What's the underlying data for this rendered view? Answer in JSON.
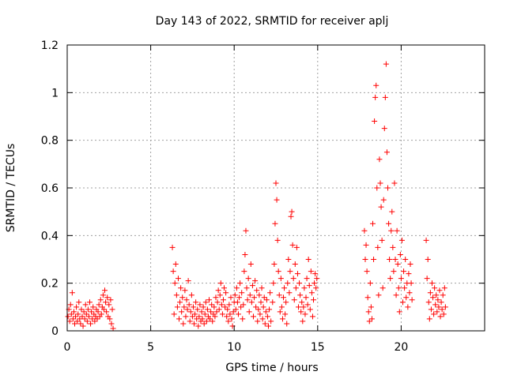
{
  "chart_data": {
    "type": "scatter",
    "title": "Day 143 of 2022, SRMTID for receiver aplj",
    "xlabel": "GPS time / hours",
    "ylabel": "SRMTID / TECUs",
    "xlim": [
      0,
      25
    ],
    "ylim": [
      0,
      1.2
    ],
    "xticks": [
      0,
      5,
      10,
      15,
      20
    ],
    "xtick_labels": [
      "0",
      "5",
      "10",
      "15",
      "20"
    ],
    "yticks": [
      0,
      0.2,
      0.4,
      0.6,
      0.8,
      1.0,
      1.2
    ],
    "ytick_labels": [
      "0",
      "0.2",
      "0.4",
      "0.6",
      "0.8",
      "1",
      "1.2"
    ],
    "grid": true,
    "marker": "+",
    "color": "#ff0000",
    "series": [
      {
        "name": "SRMTID",
        "points": [
          [
            0.05,
            0.06
          ],
          [
            0.1,
            0.09
          ],
          [
            0.15,
            0.04
          ],
          [
            0.2,
            0.11
          ],
          [
            0.25,
            0.07
          ],
          [
            0.3,
            0.16
          ],
          [
            0.35,
            0.05
          ],
          [
            0.4,
            0.08
          ],
          [
            0.45,
            0.03
          ],
          [
            0.5,
            0.06
          ],
          [
            0.55,
            0.1
          ],
          [
            0.6,
            0.04
          ],
          [
            0.65,
            0.07
          ],
          [
            0.7,
            0.12
          ],
          [
            0.75,
            0.05
          ],
          [
            0.8,
            0.03
          ],
          [
            0.85,
            0.09
          ],
          [
            0.9,
            0.06
          ],
          [
            0.95,
            0.02
          ],
          [
            1.0,
            0.08
          ],
          [
            1.05,
            0.05
          ],
          [
            1.1,
            0.11
          ],
          [
            1.15,
            0.07
          ],
          [
            1.2,
            0.04
          ],
          [
            1.25,
            0.09
          ],
          [
            1.3,
            0.06
          ],
          [
            1.35,
            0.12
          ],
          [
            1.4,
            0.03
          ],
          [
            1.45,
            0.08
          ],
          [
            1.5,
            0.05
          ],
          [
            1.55,
            0.1
          ],
          [
            1.6,
            0.07
          ],
          [
            1.65,
            0.04
          ],
          [
            1.7,
            0.06
          ],
          [
            1.75,
            0.09
          ],
          [
            1.8,
            0.05
          ],
          [
            1.85,
            0.08
          ],
          [
            1.9,
            0.11
          ],
          [
            1.95,
            0.06
          ],
          [
            2.0,
            0.13
          ],
          [
            2.05,
            0.07
          ],
          [
            2.1,
            0.1
          ],
          [
            2.15,
            0.15
          ],
          [
            2.2,
            0.09
          ],
          [
            2.25,
            0.17
          ],
          [
            2.3,
            0.12
          ],
          [
            2.35,
            0.08
          ],
          [
            2.4,
            0.14
          ],
          [
            2.45,
            0.06
          ],
          [
            2.5,
            0.11
          ],
          [
            2.55,
            0.05
          ],
          [
            2.6,
            0.13
          ],
          [
            2.65,
            0.03
          ],
          [
            2.7,
            0.09
          ],
          [
            2.75,
            0.01
          ],
          [
            6.3,
            0.35
          ],
          [
            6.35,
            0.25
          ],
          [
            6.4,
            0.07
          ],
          [
            6.45,
            0.2
          ],
          [
            6.5,
            0.28
          ],
          [
            6.55,
            0.15
          ],
          [
            6.6,
            0.1
          ],
          [
            6.65,
            0.22
          ],
          [
            6.7,
            0.05
          ],
          [
            6.75,
            0.12
          ],
          [
            6.8,
            0.18
          ],
          [
            6.85,
            0.08
          ],
          [
            6.9,
            0.14
          ],
          [
            6.95,
            0.03
          ],
          [
            7.0,
            0.1
          ],
          [
            7.05,
            0.17
          ],
          [
            7.1,
            0.06
          ],
          [
            7.15,
            0.13
          ],
          [
            7.2,
            0.09
          ],
          [
            7.25,
            0.21
          ],
          [
            7.3,
            0.11
          ],
          [
            7.35,
            0.04
          ],
          [
            7.4,
            0.08
          ],
          [
            7.45,
            0.15
          ],
          [
            7.5,
            0.06
          ],
          [
            7.55,
            0.1
          ],
          [
            7.6,
            0.03
          ],
          [
            7.65,
            0.07
          ],
          [
            7.7,
            0.12
          ],
          [
            7.75,
            0.05
          ],
          [
            7.8,
            0.09
          ],
          [
            7.85,
            0.02
          ],
          [
            7.9,
            0.06
          ],
          [
            7.95,
            0.11
          ],
          [
            8.0,
            0.04
          ],
          [
            8.05,
            0.08
          ],
          [
            8.1,
            0.05
          ],
          [
            8.15,
            0.1
          ],
          [
            8.2,
            0.03
          ],
          [
            8.25,
            0.07
          ],
          [
            8.3,
            0.12
          ],
          [
            8.35,
            0.04
          ],
          [
            8.4,
            0.09
          ],
          [
            8.45,
            0.06
          ],
          [
            8.5,
            0.13
          ],
          [
            8.55,
            0.05
          ],
          [
            8.6,
            0.08
          ],
          [
            8.65,
            0.11
          ],
          [
            8.7,
            0.04
          ],
          [
            8.75,
            0.07
          ],
          [
            8.8,
            0.1
          ],
          [
            8.85,
            0.06
          ],
          [
            8.9,
            0.14
          ],
          [
            8.95,
            0.08
          ],
          [
            9.0,
            0.12
          ],
          [
            9.05,
            0.17
          ],
          [
            9.1,
            0.09
          ],
          [
            9.15,
            0.15
          ],
          [
            9.2,
            0.2
          ],
          [
            9.25,
            0.11
          ],
          [
            9.3,
            0.07
          ],
          [
            9.35,
            0.13
          ],
          [
            9.4,
            0.18
          ],
          [
            9.45,
            0.1
          ],
          [
            9.5,
            0.16
          ],
          [
            9.55,
            0.06
          ],
          [
            9.6,
            0.09
          ],
          [
            9.65,
            0.04
          ],
          [
            9.7,
            0.11
          ],
          [
            9.75,
            0.07
          ],
          [
            9.8,
            0.14
          ],
          [
            9.85,
            0.05
          ],
          [
            9.9,
            0.02
          ],
          [
            9.95,
            0.08
          ],
          [
            10.0,
            0.12
          ],
          [
            10.05,
            0.15
          ],
          [
            10.1,
            0.09
          ],
          [
            10.15,
            0.18
          ],
          [
            10.2,
            0.12
          ],
          [
            10.25,
            0.07
          ],
          [
            10.3,
            0.14
          ],
          [
            10.35,
            0.2
          ],
          [
            10.4,
            0.1
          ],
          [
            10.45,
            0.16
          ],
          [
            10.5,
            0.05
          ],
          [
            10.55,
            0.11
          ],
          [
            10.6,
            0.25
          ],
          [
            10.65,
            0.32
          ],
          [
            10.7,
            0.42
          ],
          [
            10.75,
            0.18
          ],
          [
            10.8,
            0.13
          ],
          [
            10.85,
            0.22
          ],
          [
            10.9,
            0.08
          ],
          [
            10.95,
            0.15
          ],
          [
            11.0,
            0.28
          ],
          [
            11.05,
            0.12
          ],
          [
            11.1,
            0.19
          ],
          [
            11.15,
            0.06
          ],
          [
            11.2,
            0.14
          ],
          [
            11.25,
            0.21
          ],
          [
            11.3,
            0.1
          ],
          [
            11.35,
            0.17
          ],
          [
            11.4,
            0.04
          ],
          [
            11.45,
            0.09
          ],
          [
            11.5,
            0.15
          ],
          [
            11.55,
            0.07
          ],
          [
            11.6,
            0.12
          ],
          [
            11.65,
            0.18
          ],
          [
            11.7,
            0.05
          ],
          [
            11.75,
            0.1
          ],
          [
            11.8,
            0.14
          ],
          [
            11.85,
            0.03
          ],
          [
            11.9,
            0.08
          ],
          [
            11.95,
            0.13
          ],
          [
            12.0,
            0.06
          ],
          [
            12.05,
            0.02
          ],
          [
            12.1,
            0.09
          ],
          [
            12.15,
            0.16
          ],
          [
            12.2,
            0.04
          ],
          [
            12.3,
            0.12
          ],
          [
            12.35,
            0.2
          ],
          [
            12.4,
            0.28
          ],
          [
            12.45,
            0.45
          ],
          [
            12.5,
            0.62
          ],
          [
            12.55,
            0.55
          ],
          [
            12.6,
            0.38
          ],
          [
            12.65,
            0.25
          ],
          [
            12.7,
            0.15
          ],
          [
            12.75,
            0.08
          ],
          [
            12.8,
            0.22
          ],
          [
            12.85,
            0.1
          ],
          [
            12.9,
            0.05
          ],
          [
            12.95,
            0.14
          ],
          [
            13.0,
            0.18
          ],
          [
            13.05,
            0.07
          ],
          [
            13.1,
            0.12
          ],
          [
            13.15,
            0.03
          ],
          [
            13.2,
            0.2
          ],
          [
            13.25,
            0.3
          ],
          [
            13.3,
            0.16
          ],
          [
            13.35,
            0.25
          ],
          [
            13.4,
            0.48
          ],
          [
            13.45,
            0.5
          ],
          [
            13.5,
            0.36
          ],
          [
            13.55,
            0.22
          ],
          [
            13.6,
            0.13
          ],
          [
            13.65,
            0.28
          ],
          [
            13.7,
            0.18
          ],
          [
            13.75,
            0.35
          ],
          [
            13.8,
            0.24
          ],
          [
            13.85,
            0.1
          ],
          [
            13.9,
            0.2
          ],
          [
            13.95,
            0.15
          ],
          [
            14.0,
            0.08
          ],
          [
            14.05,
            0.12
          ],
          [
            14.1,
            0.04
          ],
          [
            14.15,
            0.1
          ],
          [
            14.2,
            0.18
          ],
          [
            14.25,
            0.07
          ],
          [
            14.3,
            0.14
          ],
          [
            14.35,
            0.22
          ],
          [
            14.4,
            0.11
          ],
          [
            14.45,
            0.3
          ],
          [
            14.5,
            0.19
          ],
          [
            14.55,
            0.09
          ],
          [
            14.6,
            0.25
          ],
          [
            14.65,
            0.16
          ],
          [
            14.7,
            0.06
          ],
          [
            14.75,
            0.13
          ],
          [
            14.8,
            0.2
          ],
          [
            14.85,
            0.24
          ],
          [
            14.9,
            0.18
          ],
          [
            14.95,
            0.22
          ],
          [
            17.8,
            0.42
          ],
          [
            17.85,
            0.3
          ],
          [
            17.9,
            0.36
          ],
          [
            17.95,
            0.25
          ],
          [
            18.0,
            0.14
          ],
          [
            18.05,
            0.08
          ],
          [
            18.1,
            0.04
          ],
          [
            18.15,
            0.2
          ],
          [
            18.2,
            0.1
          ],
          [
            18.25,
            0.05
          ],
          [
            18.3,
            0.45
          ],
          [
            18.35,
            0.3
          ],
          [
            18.4,
            0.88
          ],
          [
            18.45,
            0.98
          ],
          [
            18.5,
            1.03
          ],
          [
            18.55,
            0.6
          ],
          [
            18.6,
            0.35
          ],
          [
            18.65,
            0.15
          ],
          [
            18.7,
            0.72
          ],
          [
            18.75,
            0.62
          ],
          [
            18.8,
            0.52
          ],
          [
            18.85,
            0.38
          ],
          [
            18.9,
            0.18
          ],
          [
            18.95,
            0.55
          ],
          [
            19.0,
            0.85
          ],
          [
            19.05,
            0.98
          ],
          [
            19.1,
            1.12
          ],
          [
            19.15,
            0.75
          ],
          [
            19.2,
            0.6
          ],
          [
            19.25,
            0.45
          ],
          [
            19.3,
            0.3
          ],
          [
            19.35,
            0.22
          ],
          [
            19.4,
            0.42
          ],
          [
            19.45,
            0.5
          ],
          [
            19.5,
            0.35
          ],
          [
            19.55,
            0.25
          ],
          [
            19.6,
            0.62
          ],
          [
            19.65,
            0.3
          ],
          [
            19.7,
            0.15
          ],
          [
            19.75,
            0.42
          ],
          [
            19.8,
            0.28
          ],
          [
            19.85,
            0.18
          ],
          [
            19.9,
            0.08
          ],
          [
            19.95,
            0.32
          ],
          [
            20.0,
            0.22
          ],
          [
            20.05,
            0.38
          ],
          [
            20.1,
            0.12
          ],
          [
            20.15,
            0.25
          ],
          [
            20.2,
            0.18
          ],
          [
            20.25,
            0.3
          ],
          [
            20.3,
            0.14
          ],
          [
            20.35,
            0.2
          ],
          [
            20.4,
            0.1
          ],
          [
            20.45,
            0.24
          ],
          [
            20.5,
            0.16
          ],
          [
            20.55,
            0.28
          ],
          [
            20.6,
            0.2
          ],
          [
            20.65,
            0.13
          ],
          [
            21.5,
            0.38
          ],
          [
            21.55,
            0.22
          ],
          [
            21.6,
            0.3
          ],
          [
            21.65,
            0.12
          ],
          [
            21.7,
            0.05
          ],
          [
            21.75,
            0.16
          ],
          [
            21.8,
            0.09
          ],
          [
            21.85,
            0.2
          ],
          [
            21.9,
            0.14
          ],
          [
            21.95,
            0.07
          ],
          [
            22.0,
            0.18
          ],
          [
            22.05,
            0.11
          ],
          [
            22.1,
            0.15
          ],
          [
            22.15,
            0.08
          ],
          [
            22.2,
            0.13
          ],
          [
            22.25,
            0.1
          ],
          [
            22.3,
            0.17
          ],
          [
            22.35,
            0.06
          ],
          [
            22.4,
            0.12
          ],
          [
            22.45,
            0.09
          ],
          [
            22.5,
            0.15
          ],
          [
            22.55,
            0.07
          ],
          [
            22.6,
            0.18
          ],
          [
            22.65,
            0.1
          ]
        ]
      }
    ]
  }
}
